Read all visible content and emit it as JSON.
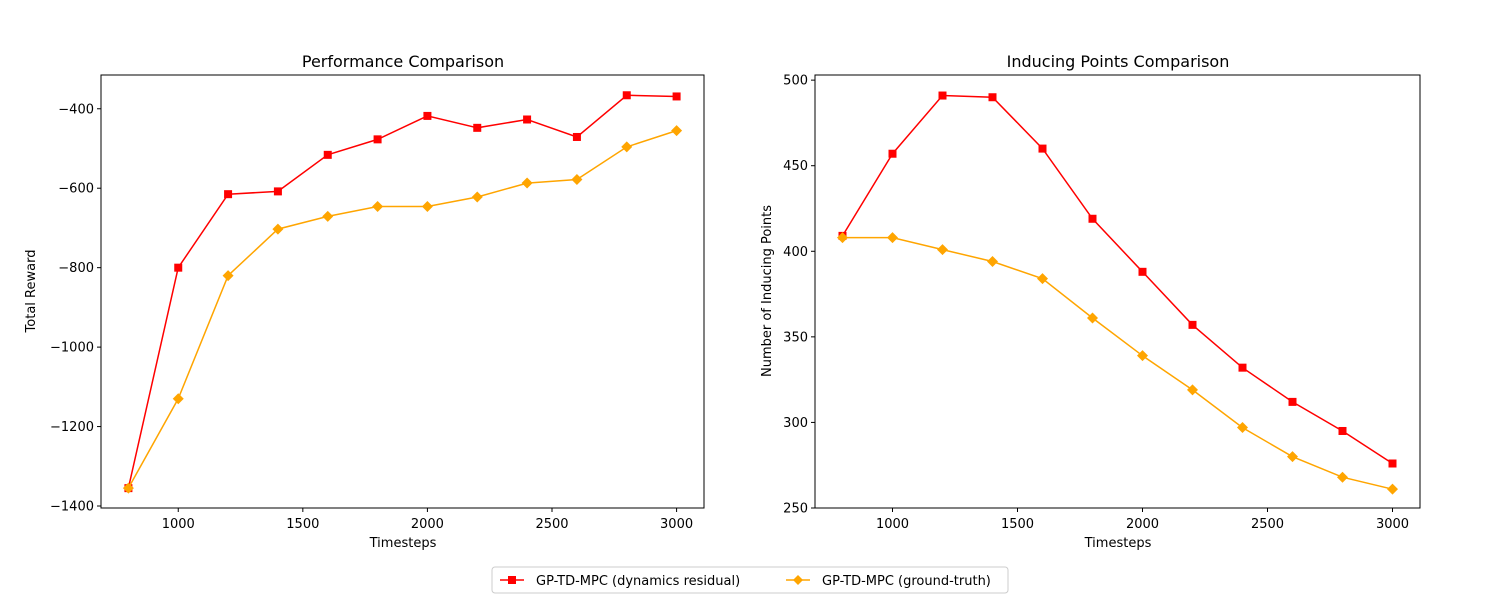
{
  "chart_data": [
    {
      "type": "line",
      "title": "Performance Comparison",
      "xlabel": "Timesteps",
      "ylabel": "Total Reward",
      "x": [
        800,
        1000,
        1200,
        1400,
        1600,
        1800,
        2000,
        2200,
        2400,
        2600,
        2800,
        3000
      ],
      "xticks": [
        1000,
        1500,
        2000,
        2500,
        3000
      ],
      "yticks": [
        -1400,
        -1200,
        -1000,
        -800,
        -600,
        -400
      ],
      "xlim": [
        690,
        3110
      ],
      "ylim": [
        -1405,
        -315
      ],
      "grid": false,
      "series": [
        {
          "name": "GP-TD-MPC (dynamics residual)",
          "color": "#ff0000",
          "marker": "square",
          "values": [
            -1355,
            -800,
            -615,
            -608,
            -516,
            -477,
            -418,
            -448,
            -427,
            -471,
            -366,
            -369
          ]
        },
        {
          "name": "GP-TD-MPC (ground-truth)",
          "color": "#ffa500",
          "marker": "diamond",
          "values": [
            -1355,
            -1130,
            -820,
            -703,
            -671,
            -646,
            -646,
            -622,
            -587,
            -578,
            -496,
            -455
          ]
        }
      ]
    },
    {
      "type": "line",
      "title": "Inducing Points Comparison",
      "xlabel": "Timesteps",
      "ylabel": "Number of Inducing Points",
      "x": [
        800,
        1000,
        1200,
        1400,
        1600,
        1800,
        2000,
        2200,
        2400,
        2600,
        2800,
        3000
      ],
      "xticks": [
        1000,
        1500,
        2000,
        2500,
        3000
      ],
      "yticks": [
        250,
        300,
        350,
        400,
        450,
        500
      ],
      "xlim": [
        690,
        3110
      ],
      "ylim": [
        250,
        503
      ],
      "grid": false,
      "series": [
        {
          "name": "GP-TD-MPC (dynamics residual)",
          "color": "#ff0000",
          "marker": "square",
          "values": [
            409,
            457,
            491,
            490,
            460,
            419,
            388,
            357,
            332,
            312,
            295,
            276
          ]
        },
        {
          "name": "GP-TD-MPC (ground-truth)",
          "color": "#ffa500",
          "marker": "diamond",
          "values": [
            408,
            408,
            401,
            394,
            384,
            361,
            339,
            319,
            297,
            280,
            268,
            261
          ]
        }
      ]
    }
  ],
  "legend": {
    "placement": "bottom-center",
    "items": [
      {
        "label": "GP-TD-MPC (dynamics residual)",
        "color": "#ff0000",
        "marker": "square"
      },
      {
        "label": "GP-TD-MPC (ground-truth)",
        "color": "#ffa500",
        "marker": "diamond"
      }
    ]
  }
}
